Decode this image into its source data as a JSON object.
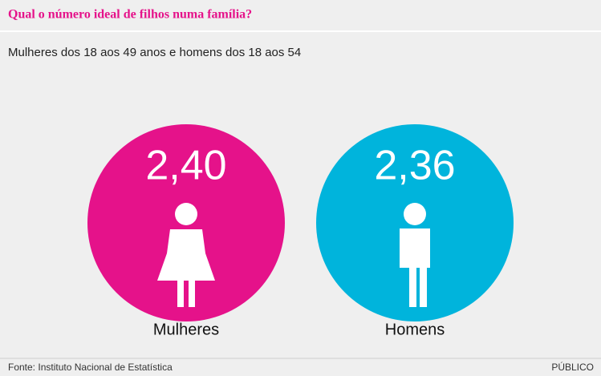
{
  "chart_data": {
    "type": "circle",
    "title": "Qual o número ideal de filhos numa família?",
    "subtitle": "Mulheres dos 18 aos 49 anos e homens dos 18 aos 54",
    "categories": [
      "Mulheres",
      "Homens"
    ],
    "values": [
      2.4,
      2.36
    ],
    "value_labels": [
      "2,40",
      "2,36"
    ],
    "colors": [
      "#e5128a",
      "#00b4dc"
    ],
    "source": "Fonte: Instituto Nacional de Estatística",
    "credit": "PÚBLICO"
  }
}
